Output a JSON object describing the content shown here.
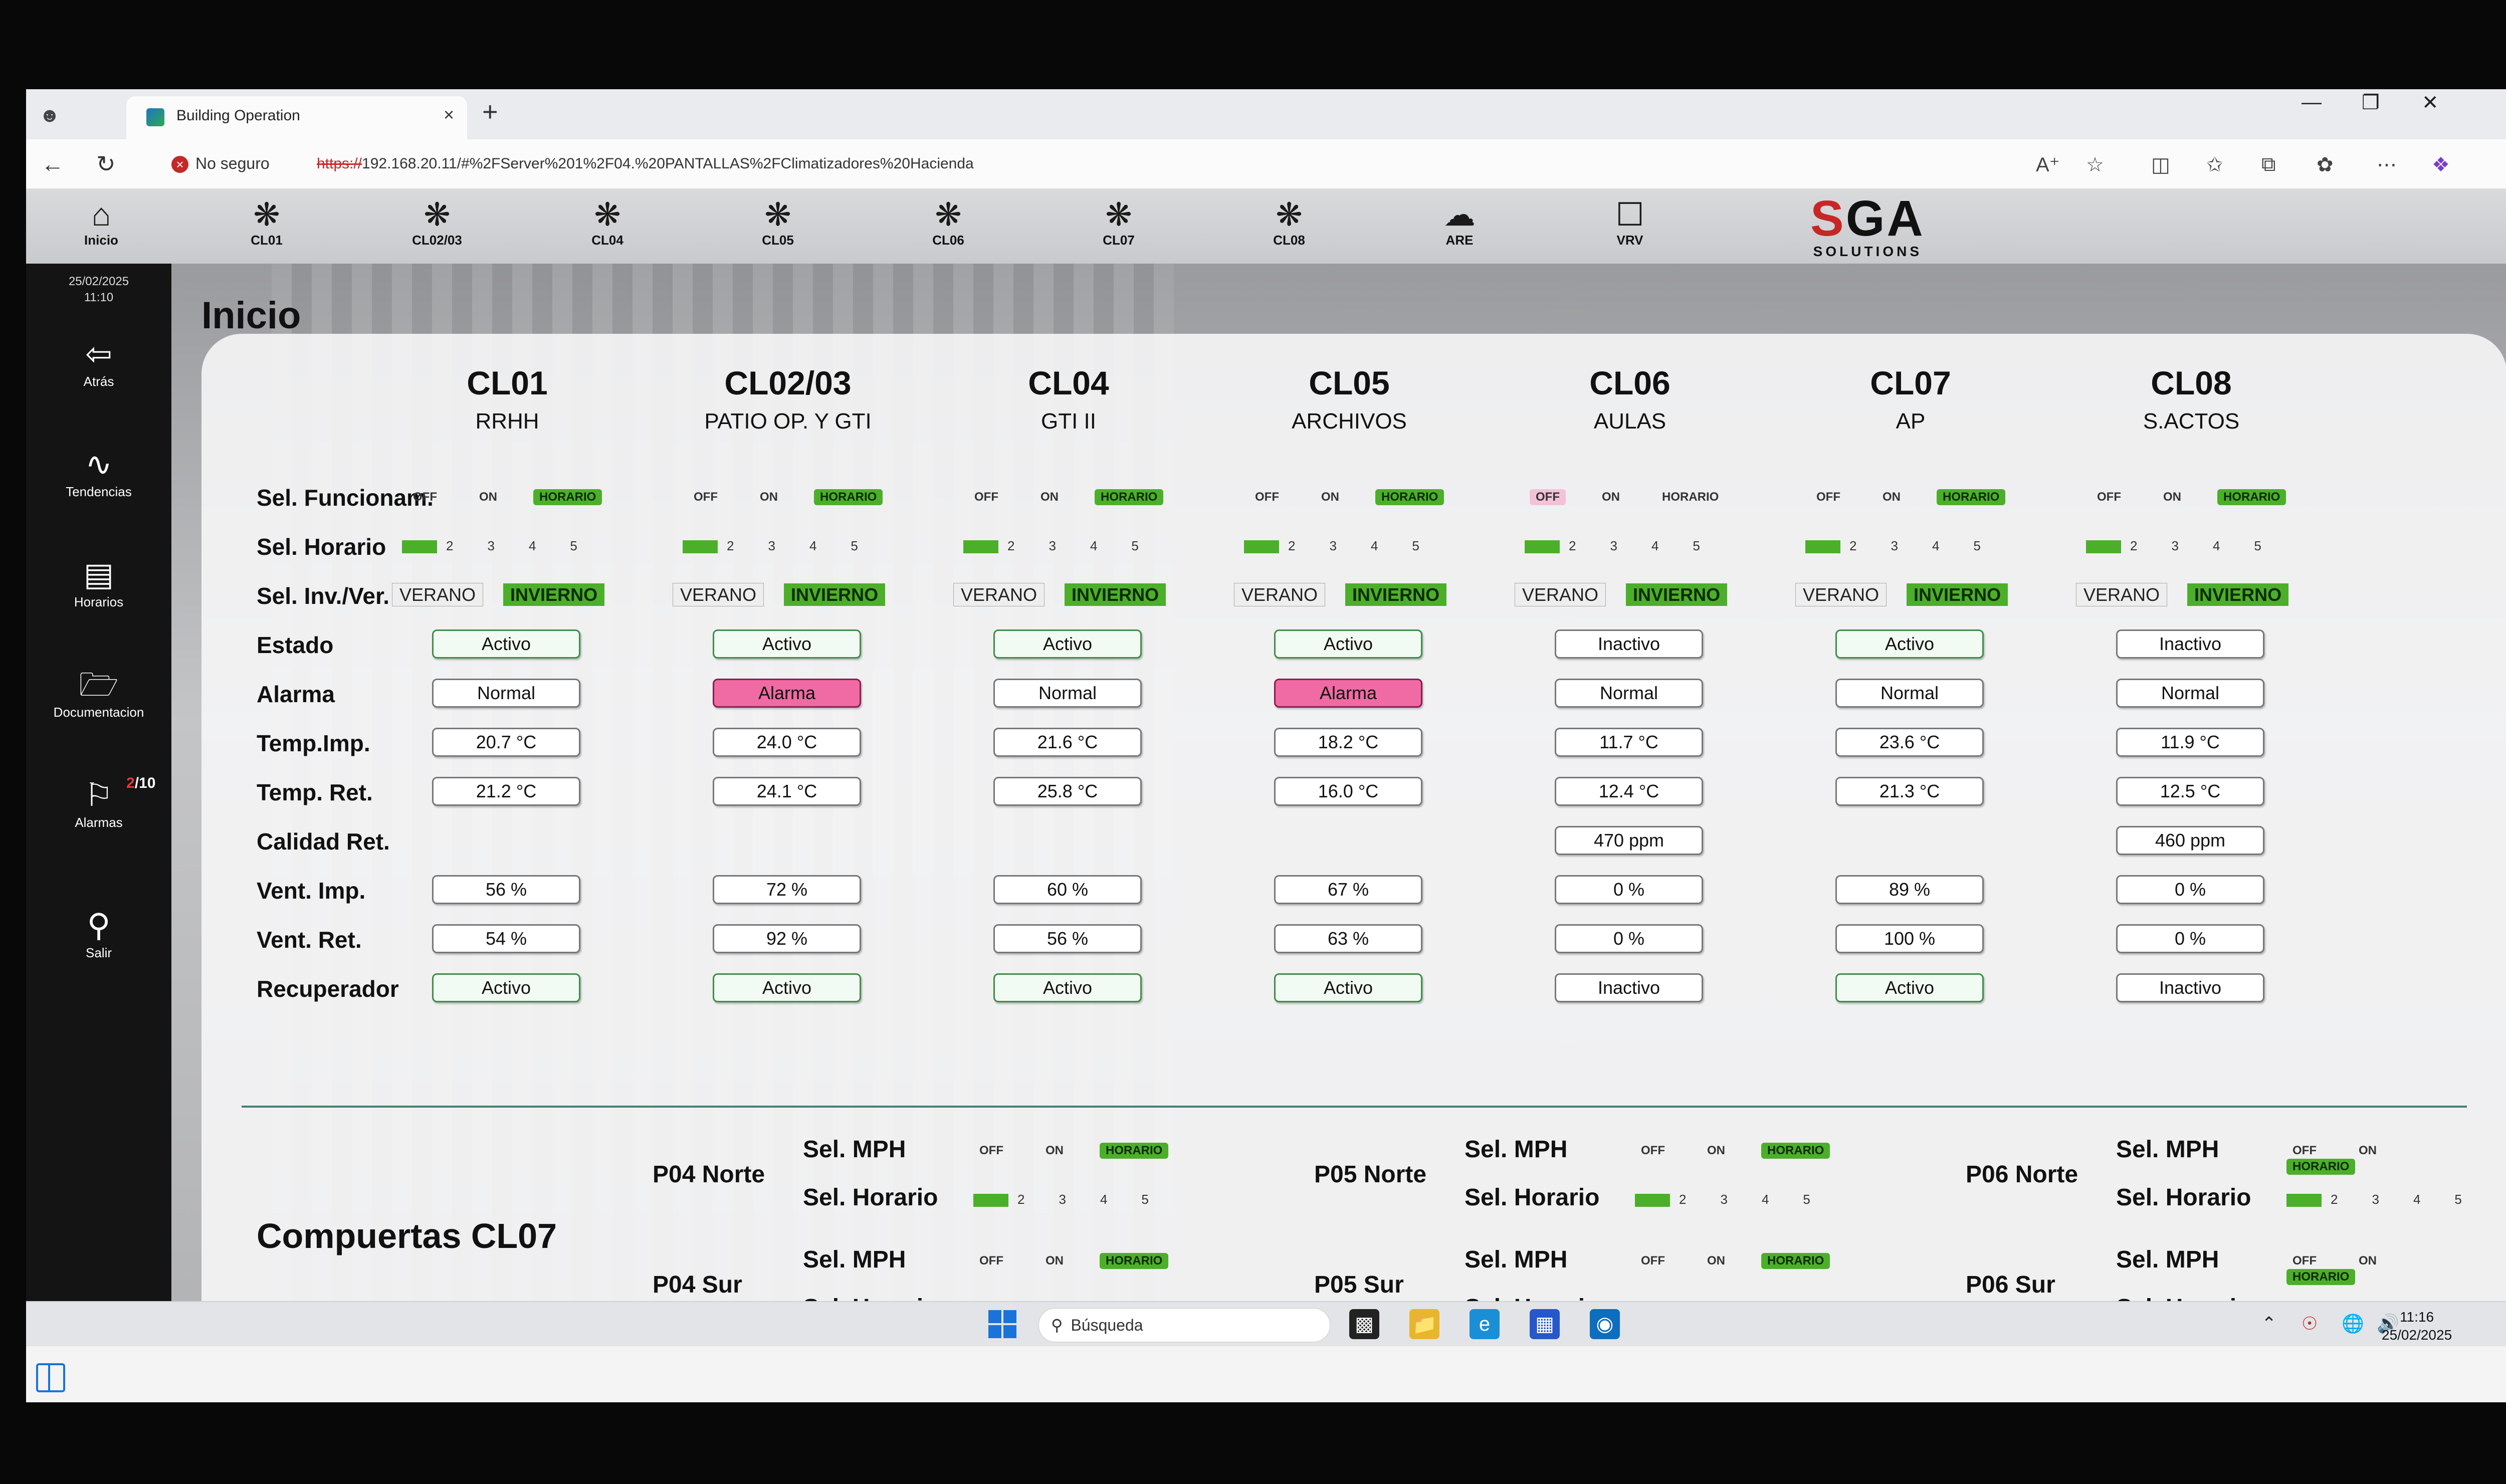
{
  "browser": {
    "tab_title": "Building Operation",
    "security_label": "No seguro",
    "url_scheme": "https://",
    "url_rest": "192.168.20.11/#%2FServer%201%2F04.%20PANTALLAS%2FClimatizadores%20Hacienda"
  },
  "nav": [
    {
      "label": "Inicio",
      "icon": "home-icon"
    },
    {
      "label": "CL01",
      "icon": "fan-icon"
    },
    {
      "label": "CL02/03",
      "icon": "fan-icon"
    },
    {
      "label": "CL04",
      "icon": "fan-icon"
    },
    {
      "label": "CL05",
      "icon": "fan-icon"
    },
    {
      "label": "CL06",
      "icon": "fan-icon"
    },
    {
      "label": "CL07",
      "icon": "fan-icon"
    },
    {
      "label": "CL08",
      "icon": "fan-icon"
    },
    {
      "label": "ARE",
      "icon": "cloud-icon"
    },
    {
      "label": "VRV",
      "icon": "square-icon"
    }
  ],
  "logo": {
    "text_a": "S",
    "text_b": "GA",
    "sub": "SOLUTIONS"
  },
  "sidebar": {
    "date": "25/02/2025",
    "time": "11:10",
    "items": [
      {
        "label": "Atrás"
      },
      {
        "label": "Tendencias"
      },
      {
        "label": "Horarios"
      },
      {
        "label": "Documentacion"
      },
      {
        "label": "Alarmas"
      },
      {
        "label": "Salir"
      }
    ],
    "alarm_count_red": "2",
    "alarm_count_total": "/10"
  },
  "page_title": "Inicio",
  "row_labels": [
    "Sel. Funcionam.",
    "Sel. Horario",
    "Sel. Inv./Ver.",
    "Estado",
    "Alarma",
    "Temp.Imp.",
    "Temp. Ret.",
    "Calidad Ret.",
    "Vent. Imp.",
    "Vent. Ret.",
    "Recuperador"
  ],
  "mode_labels": {
    "off": "OFF",
    "on": "ON",
    "horario": "HORARIO"
  },
  "hor_nums": [
    "1",
    "2",
    "3",
    "4",
    "5"
  ],
  "season_labels": {
    "verano": "VERANO",
    "invierno": "INVIERNO"
  },
  "units": [
    {
      "name": "CL01",
      "zone": "RRHH",
      "estado": "Activo",
      "alarma": "Normal",
      "timp": "20.7 °C",
      "tret": "21.2 °C",
      "calidad": "",
      "vimp": "56 %",
      "vret": "54 %",
      "recup": "Activo"
    },
    {
      "name": "CL02/03",
      "zone": "PATIO OP. Y GTI",
      "estado": "Activo",
      "alarma": "Alarma",
      "timp": "24.0 °C",
      "tret": "24.1 °C",
      "calidad": "",
      "vimp": "72 %",
      "vret": "92 %",
      "recup": "Activo"
    },
    {
      "name": "CL04",
      "zone": "GTI II",
      "estado": "Activo",
      "alarma": "Normal",
      "timp": "21.6 °C",
      "tret": "25.8 °C",
      "calidad": "",
      "vimp": "60 %",
      "vret": "56 %",
      "recup": "Activo"
    },
    {
      "name": "CL05",
      "zone": "ARCHIVOS",
      "estado": "Activo",
      "alarma": "Alarma",
      "timp": "18.2 °C",
      "tret": "16.0 °C",
      "calidad": "",
      "vimp": "67 %",
      "vret": "63 %",
      "recup": "Activo"
    },
    {
      "name": "CL06",
      "zone": "AULAS",
      "estado": "Inactivo",
      "alarma": "Normal",
      "timp": "11.7 °C",
      "tret": "12.4 °C",
      "calidad": "470 ppm",
      "vimp": "0 %",
      "vret": "0 %",
      "recup": "Inactivo"
    },
    {
      "name": "CL07",
      "zone": "AP",
      "estado": "Activo",
      "alarma": "Normal",
      "timp": "23.6 °C",
      "tret": "21.3 °C",
      "calidad": "",
      "vimp": "89 %",
      "vret": "100 %",
      "recup": "Activo"
    },
    {
      "name": "CL08",
      "zone": "S.ACTOS",
      "estado": "Inactivo",
      "alarma": "Normal",
      "timp": "11.9 °C",
      "tret": "12.5 °C",
      "calidad": "460 ppm",
      "vimp": "0 %",
      "vret": "0 %",
      "recup": "Inactivo"
    }
  ],
  "compuertas": {
    "title": "Compuertas CL07",
    "sel_mph": "Sel. MPH",
    "sel_horario": "Sel. Horario",
    "groups": [
      "P04 Norte",
      "P04 Sur",
      "P05 Norte",
      "P05 Sur",
      "P06 Norte",
      "P06 Sur"
    ]
  },
  "taskbar": {
    "search": "Búsqueda",
    "time": "11:16",
    "date": "25/02/2025"
  },
  "colors": {
    "active_green": "#4caf2a",
    "alarm_pink": "#f06aa3",
    "divider": "#4a7f73",
    "logo_red": "#c62828"
  }
}
